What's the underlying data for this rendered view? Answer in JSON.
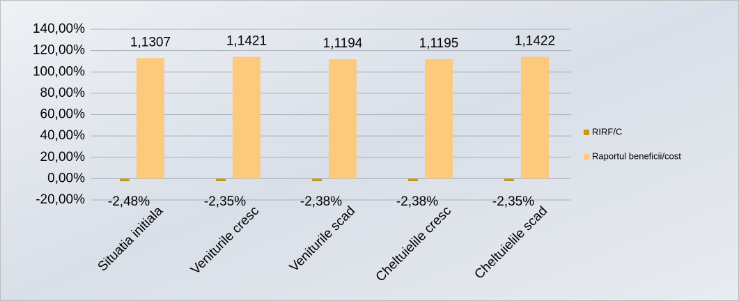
{
  "chart_data": {
    "type": "bar",
    "categories": [
      "Situatia initiala",
      "Veniturile cresc",
      "Veniturile scad",
      "Cheltuielile cresc",
      "Cheltuielile scad"
    ],
    "series": [
      {
        "name": "RIRF/C",
        "color": "#c9961e",
        "values": [
          -2.48,
          -2.35,
          -2.38,
          -2.38,
          -2.35
        ],
        "value_labels": [
          "-2,48%",
          "-2,35%",
          "-2,38%",
          "-2,38%",
          "-2,35%"
        ]
      },
      {
        "name": "Raportul beneficii/cost",
        "color": "#fcca7c",
        "values": [
          113.07,
          114.21,
          111.94,
          111.95,
          114.22
        ],
        "value_labels": [
          "1,1307",
          "1,1421",
          "1,1194",
          "1,1195",
          "1,1422"
        ]
      }
    ],
    "ylim": [
      -20,
      140
    ],
    "yticks": [
      {
        "value": -20,
        "label": "-20,00%"
      },
      {
        "value": 0,
        "label": "0,00%"
      },
      {
        "value": 20,
        "label": "20,00%"
      },
      {
        "value": 40,
        "label": "40,00%"
      },
      {
        "value": 60,
        "label": "60,00%"
      },
      {
        "value": 80,
        "label": "80,00%"
      },
      {
        "value": 100,
        "label": "100,00%"
      },
      {
        "value": 120,
        "label": "120,00%"
      },
      {
        "value": 140,
        "label": "140,00%"
      }
    ],
    "grid": true,
    "legend": "right"
  }
}
